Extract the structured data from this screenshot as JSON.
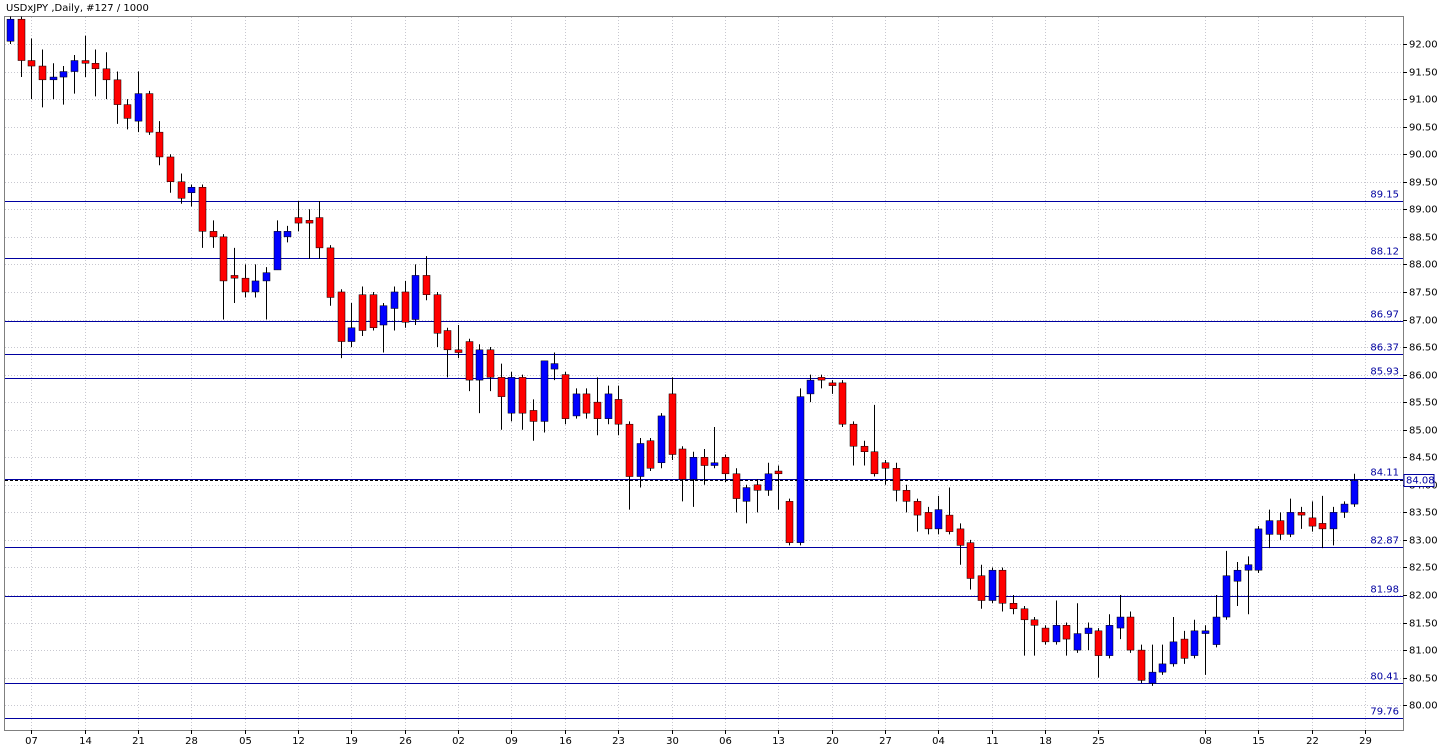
{
  "chart_data": {
    "type": "candlestick",
    "title": "USDxJPY ,Daily, #127 / 1000",
    "categories": [
      null,
      null,
      "07",
      null,
      null,
      null,
      null,
      "14",
      null,
      null,
      null,
      null,
      "21",
      null,
      null,
      null,
      null,
      "28",
      null,
      null,
      null,
      null,
      "05",
      null,
      null,
      null,
      null,
      "12",
      null,
      null,
      null,
      null,
      "19",
      null,
      null,
      null,
      null,
      "26",
      null,
      null,
      null,
      null,
      "02",
      null,
      null,
      null,
      null,
      "09",
      null,
      null,
      null,
      null,
      "16",
      null,
      null,
      null,
      null,
      "23",
      null,
      null,
      null,
      null,
      "30",
      null,
      null,
      null,
      null,
      "06",
      null,
      null,
      null,
      null,
      "13",
      null,
      null,
      null,
      null,
      "20",
      null,
      null,
      null,
      null,
      "27",
      null,
      null,
      null,
      null,
      "04",
      null,
      null,
      null,
      null,
      "11",
      null,
      null,
      null,
      null,
      "18",
      null,
      null,
      null,
      null,
      "25",
      null,
      null,
      null,
      null,
      null,
      null,
      null,
      null,
      null,
      "08",
      null,
      null,
      null,
      null,
      "15",
      null,
      null,
      null,
      null,
      "22",
      null,
      null,
      null,
      null,
      "29"
    ],
    "open": [
      92.05,
      92.45,
      91.7,
      91.6,
      91.35,
      91.4,
      91.5,
      91.7,
      91.65,
      91.55,
      91.35,
      90.9,
      90.6,
      91.1,
      90.4,
      89.95,
      89.5,
      89.3,
      89.4,
      88.6,
      88.5,
      87.8,
      87.75,
      87.5,
      87.7,
      87.9,
      88.5,
      88.85,
      88.8,
      88.85,
      88.3,
      87.5,
      86.6,
      87.45,
      87.45,
      86.9,
      87.2,
      87.5,
      87.0,
      87.8,
      87.45,
      86.8,
      86.45,
      86.6,
      85.9,
      86.45,
      85.95,
      85.3,
      85.95,
      85.35,
      85.15,
      86.1,
      86.0,
      85.25,
      85.65,
      85.5,
      85.2,
      85.55,
      85.1,
      84.15,
      84.8,
      84.4,
      85.65,
      84.65,
      84.1,
      84.5,
      84.35,
      84.5,
      84.2,
      83.7,
      84.0,
      83.9,
      84.25,
      83.7,
      82.95,
      85.65,
      85.95,
      85.85,
      85.85,
      85.1,
      84.7,
      84.6,
      84.4,
      84.3,
      83.9,
      83.7,
      83.5,
      83.2,
      83.45,
      83.2,
      82.95,
      82.35,
      81.9,
      82.45,
      81.85,
      81.75,
      81.55,
      81.4,
      81.15,
      81.45,
      81.0,
      81.3,
      81.35,
      80.9,
      81.4,
      81.6,
      81.0,
      80.4,
      80.6,
      80.75,
      81.2,
      80.9,
      81.3,
      81.1,
      81.6,
      82.25,
      82.45,
      82.45,
      83.1,
      83.35,
      83.1,
      83.5,
      83.4,
      83.3,
      83.2,
      83.5,
      83.65,
      null
    ],
    "high": [
      92.5,
      92.5,
      92.1,
      91.9,
      91.65,
      91.6,
      91.8,
      92.15,
      91.9,
      91.85,
      91.5,
      91.0,
      91.5,
      91.15,
      90.6,
      90.0,
      89.65,
      89.45,
      89.45,
      88.8,
      88.55,
      88.3,
      88.0,
      88.0,
      87.95,
      88.8,
      88.7,
      89.15,
      89.0,
      89.15,
      88.35,
      87.55,
      87.3,
      87.6,
      87.5,
      87.3,
      87.6,
      87.7,
      88.0,
      88.15,
      87.5,
      86.85,
      86.9,
      86.65,
      86.55,
      86.5,
      86.2,
      86.05,
      86.0,
      85.55,
      86.25,
      86.4,
      86.05,
      85.75,
      85.75,
      85.95,
      85.8,
      85.8,
      85.15,
      84.85,
      84.85,
      85.3,
      85.95,
      84.7,
      84.6,
      84.65,
      85.05,
      84.55,
      84.3,
      84.0,
      84.1,
      84.4,
      84.35,
      83.75,
      85.75,
      86.0,
      86.0,
      85.9,
      85.9,
      85.15,
      84.8,
      85.45,
      84.45,
      84.4,
      84.0,
      83.75,
      83.6,
      83.8,
      83.95,
      83.3,
      83.0,
      82.55,
      82.5,
      82.5,
      82.0,
      81.8,
      81.6,
      81.45,
      81.9,
      81.5,
      81.85,
      81.5,
      81.4,
      81.65,
      82.0,
      81.7,
      81.1,
      81.1,
      81.1,
      81.6,
      81.35,
      81.55,
      81.45,
      82.0,
      82.8,
      82.6,
      82.7,
      83.25,
      83.55,
      83.5,
      83.75,
      83.6,
      83.7,
      83.8,
      83.6,
      83.7,
      84.2,
      null
    ],
    "low": [
      92.0,
      91.4,
      91.0,
      90.85,
      91.0,
      90.9,
      91.1,
      91.4,
      91.05,
      91.0,
      90.55,
      90.45,
      90.4,
      90.35,
      89.8,
      89.3,
      89.1,
      89.05,
      88.3,
      88.3,
      87.0,
      87.3,
      87.4,
      87.4,
      87.0,
      87.9,
      88.4,
      88.6,
      88.1,
      88.1,
      87.25,
      86.3,
      86.5,
      86.7,
      86.8,
      86.4,
      86.8,
      86.85,
      86.9,
      87.35,
      86.5,
      85.95,
      86.3,
      85.7,
      85.3,
      85.7,
      85.0,
      85.15,
      85.0,
      84.8,
      84.95,
      85.9,
      85.1,
      85.2,
      85.2,
      84.9,
      85.1,
      84.9,
      83.55,
      83.95,
      84.25,
      84.3,
      84.45,
      83.7,
      83.6,
      84.0,
      84.3,
      84.05,
      83.5,
      83.3,
      83.5,
      83.8,
      83.55,
      82.9,
      82.9,
      85.5,
      85.75,
      85.65,
      85.05,
      84.35,
      84.35,
      84.15,
      84.0,
      83.7,
      83.5,
      83.15,
      83.1,
      83.1,
      83.1,
      82.55,
      82.1,
      81.75,
      81.85,
      81.7,
      81.65,
      80.9,
      80.9,
      81.1,
      81.1,
      80.9,
      80.95,
      81.0,
      80.5,
      80.85,
      81.2,
      80.95,
      80.4,
      80.35,
      80.55,
      80.7,
      80.75,
      80.85,
      80.55,
      81.05,
      81.55,
      81.8,
      81.65,
      82.4,
      82.85,
      83.0,
      83.05,
      83.2,
      83.15,
      82.85,
      82.9,
      83.4,
      83.6,
      null
    ],
    "close": [
      92.45,
      91.7,
      91.6,
      91.35,
      91.4,
      91.5,
      91.7,
      91.65,
      91.55,
      91.35,
      90.9,
      90.65,
      91.1,
      90.4,
      89.95,
      89.5,
      89.2,
      89.4,
      88.6,
      88.5,
      87.7,
      87.75,
      87.5,
      87.7,
      87.85,
      88.6,
      88.6,
      88.75,
      88.75,
      88.3,
      87.4,
      86.6,
      86.85,
      86.8,
      86.85,
      87.25,
      87.5,
      86.95,
      87.8,
      87.45,
      86.75,
      86.45,
      86.4,
      85.9,
      86.45,
      85.95,
      85.6,
      85.95,
      85.3,
      85.15,
      86.25,
      86.2,
      85.2,
      85.65,
      85.3,
      85.2,
      85.65,
      85.1,
      84.15,
      84.75,
      84.3,
      85.25,
      84.55,
      84.1,
      84.5,
      84.35,
      84.4,
      84.2,
      83.75,
      83.95,
      83.9,
      84.2,
      84.2,
      82.95,
      85.6,
      85.9,
      85.9,
      85.8,
      85.1,
      84.7,
      84.6,
      84.2,
      84.3,
      83.9,
      83.7,
      83.45,
      83.2,
      83.55,
      83.15,
      82.9,
      82.3,
      81.9,
      82.45,
      81.85,
      81.75,
      81.55,
      81.45,
      81.15,
      81.45,
      81.2,
      81.3,
      81.4,
      80.9,
      81.45,
      81.6,
      81.0,
      80.45,
      80.6,
      80.75,
      81.15,
      80.85,
      81.35,
      81.35,
      81.6,
      82.35,
      82.45,
      82.55,
      83.2,
      83.35,
      83.1,
      83.5,
      83.45,
      83.25,
      83.2,
      83.5,
      83.65,
      84.08,
      null
    ],
    "up_color": "#0000ff",
    "down_color": "#ff0000",
    "levels": [
      89.15,
      88.12,
      86.97,
      86.37,
      85.93,
      84.11,
      82.87,
      81.98,
      80.41,
      79.76
    ],
    "level_color": "#0000a0",
    "current_price": 84.08,
    "ylim": [
      79.55,
      92.49
    ],
    "yticks": [
      {
        "value": 80,
        "label": "80.00"
      },
      {
        "value": 80.5,
        "label": "80.50"
      },
      {
        "value": 81,
        "label": "81.00"
      },
      {
        "value": 81.5,
        "label": "81.50"
      },
      {
        "value": 82,
        "label": "82.00"
      },
      {
        "value": 82.5,
        "label": "82.50"
      },
      {
        "value": 83,
        "label": "83.00"
      },
      {
        "value": 83.5,
        "label": "83.50"
      },
      {
        "value": 84,
        "label": "84.00"
      },
      {
        "value": 84.5,
        "label": "84.50"
      },
      {
        "value": 85,
        "label": "85.00"
      },
      {
        "value": 85.5,
        "label": "85.50"
      },
      {
        "value": 86,
        "label": "86.00"
      },
      {
        "value": 86.5,
        "label": "86.50"
      },
      {
        "value": 87,
        "label": "87.00"
      },
      {
        "value": 87.5,
        "label": "87.50"
      },
      {
        "value": 88,
        "label": "88.00"
      },
      {
        "value": 88.5,
        "label": "88.50"
      },
      {
        "value": 89,
        "label": "89.00"
      },
      {
        "value": 89.5,
        "label": "89.50"
      },
      {
        "value": 90,
        "label": "90.00"
      },
      {
        "value": 90.5,
        "label": "90.50"
      },
      {
        "value": 91,
        "label": "91.00"
      },
      {
        "value": 91.5,
        "label": "91.50"
      },
      {
        "value": 92,
        "label": "92.00"
      }
    ],
    "grid": true
  }
}
